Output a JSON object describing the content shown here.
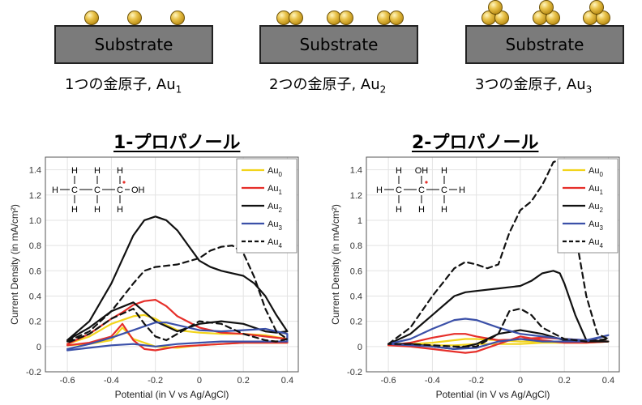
{
  "top": {
    "substrate_label": "Substrate",
    "captions": [
      {
        "text": "1つの金原子, Au",
        "sub": "1"
      },
      {
        "text": "2つの金原子, Au",
        "sub": "2"
      },
      {
        "text": "3つの金原子, Au",
        "sub": "3"
      }
    ],
    "gold_color": "#d9ad2a"
  },
  "molecules": {
    "left": {
      "H": "H",
      "C": "C",
      "OH": "OH"
    },
    "right": {
      "H": "H",
      "C": "C",
      "OH": "OH"
    }
  },
  "chart_data": [
    {
      "type": "line",
      "title": "1-プロパノール",
      "xlabel": "Potential (in V vs Ag/AgCl)",
      "ylabel": "Current Density (in mA/cm²)",
      "xlim": [
        -0.7,
        0.45
      ],
      "ylim": [
        -0.2,
        1.5
      ],
      "xticks": [
        "-0.6",
        "-0.4",
        "-0.2",
        "0",
        "0.2",
        "0.4"
      ],
      "yticks": [
        "-0.2",
        "0",
        "0.2",
        "0.4",
        "0.6",
        "0.8",
        "1.0",
        "1.2",
        "1.4"
      ],
      "grid": true,
      "legend_position": "top-right",
      "series": [
        {
          "name": "Au",
          "sub": "0",
          "color": "#f2d41c",
          "dash": false,
          "x": [
            -0.6,
            -0.5,
            -0.4,
            -0.3,
            -0.25,
            -0.2,
            -0.15,
            -0.1,
            0,
            0.1,
            0.2,
            0.3,
            0.4,
            0.4,
            0.3,
            0.2,
            0.1,
            0,
            -0.1,
            -0.2,
            -0.3,
            -0.35,
            -0.4,
            -0.5,
            -0.6
          ],
          "y": [
            0.02,
            0.08,
            0.18,
            0.24,
            0.25,
            0.22,
            0.17,
            0.13,
            0.11,
            0.1,
            0.1,
            0.09,
            0.06,
            0.03,
            0.03,
            0.03,
            0.02,
            0.01,
            -0.01,
            0.0,
            0.06,
            0.15,
            0.05,
            0.02,
            0.01
          ]
        },
        {
          "name": "Au",
          "sub": "1",
          "color": "#e62f2a",
          "dash": false,
          "x": [
            -0.6,
            -0.5,
            -0.4,
            -0.35,
            -0.3,
            -0.25,
            -0.2,
            -0.15,
            -0.1,
            0,
            0.1,
            0.2,
            0.3,
            0.4,
            0.4,
            0.3,
            0.2,
            0.1,
            0,
            -0.1,
            -0.2,
            -0.25,
            -0.3,
            -0.35,
            -0.4,
            -0.5,
            -0.6
          ],
          "y": [
            0.02,
            0.1,
            0.22,
            0.27,
            0.33,
            0.36,
            0.37,
            0.32,
            0.24,
            0.15,
            0.11,
            0.1,
            0.08,
            0.06,
            0.03,
            0.03,
            0.03,
            0.02,
            0.01,
            0.0,
            -0.03,
            -0.02,
            0.05,
            0.18,
            0.08,
            0.03,
            0.01
          ]
        },
        {
          "name": "Au",
          "sub": "2",
          "color": "#111111",
          "dash": false,
          "x": [
            -0.6,
            -0.5,
            -0.4,
            -0.3,
            -0.25,
            -0.2,
            -0.15,
            -0.1,
            -0.05,
            0,
            0.05,
            0.1,
            0.15,
            0.2,
            0.25,
            0.3,
            0.35,
            0.4,
            0.35,
            0.3,
            0.25,
            0.2,
            0.1,
            0,
            -0.1,
            -0.2,
            -0.3,
            -0.4,
            -0.5,
            -0.6
          ],
          "y": [
            0.05,
            0.2,
            0.5,
            0.88,
            1.0,
            1.03,
            1.0,
            0.92,
            0.8,
            0.68,
            0.63,
            0.6,
            0.58,
            0.56,
            0.5,
            0.4,
            0.25,
            0.12,
            0.11,
            0.12,
            0.15,
            0.18,
            0.2,
            0.18,
            0.12,
            0.2,
            0.35,
            0.28,
            0.15,
            0.05
          ]
        },
        {
          "name": "Au",
          "sub": "3",
          "color": "#3b50a8",
          "dash": false,
          "x": [
            -0.6,
            -0.5,
            -0.4,
            -0.3,
            -0.2,
            -0.15,
            -0.1,
            0,
            0.1,
            0.2,
            0.3,
            0.4,
            0.4,
            0.3,
            0.2,
            0.1,
            0,
            -0.1,
            -0.2,
            -0.3,
            -0.4,
            -0.5,
            -0.6
          ],
          "y": [
            -0.02,
            0.02,
            0.07,
            0.13,
            0.19,
            0.19,
            0.17,
            0.13,
            0.12,
            0.13,
            0.14,
            0.1,
            0.04,
            0.04,
            0.04,
            0.04,
            0.03,
            0.02,
            0.0,
            0.02,
            0.01,
            -0.01,
            -0.03
          ]
        },
        {
          "name": "Au",
          "sub": "4",
          "color": "#111111",
          "dash": true,
          "x": [
            -0.6,
            -0.5,
            -0.4,
            -0.3,
            -0.25,
            -0.2,
            -0.1,
            0,
            0.05,
            0.1,
            0.15,
            0.2,
            0.25,
            0.3,
            0.35,
            0.4,
            0.35,
            0.3,
            0.2,
            0.1,
            0,
            -0.1,
            -0.15,
            -0.2,
            -0.25,
            -0.3,
            -0.4,
            -0.5,
            -0.6
          ],
          "y": [
            0.04,
            0.12,
            0.28,
            0.5,
            0.6,
            0.63,
            0.65,
            0.7,
            0.76,
            0.79,
            0.8,
            0.74,
            0.55,
            0.3,
            0.12,
            0.06,
            0.04,
            0.05,
            0.1,
            0.18,
            0.2,
            0.1,
            0.05,
            0.08,
            0.18,
            0.3,
            0.22,
            0.1,
            0.03
          ]
        }
      ]
    },
    {
      "type": "line",
      "title": "2-プロパノール",
      "xlabel": "Potential (in V vs Ag/AgCl)",
      "ylabel": "Current Density (in mA/cm²)",
      "xlim": [
        -0.7,
        0.45
      ],
      "ylim": [
        -0.2,
        1.5
      ],
      "xticks": [
        "-0.6",
        "-0.4",
        "-0.2",
        "0",
        "0.2",
        "0.4"
      ],
      "yticks": [
        "-0.2",
        "0",
        "0.2",
        "0.4",
        "0.6",
        "0.8",
        "1",
        "1.2",
        "1.4"
      ],
      "grid": true,
      "legend_position": "top-right",
      "series": [
        {
          "name": "Au",
          "sub": "0",
          "color": "#f2d41c",
          "dash": false,
          "x": [
            -0.6,
            -0.4,
            -0.3,
            -0.25,
            -0.2,
            -0.1,
            0,
            0.1,
            0.2,
            0.3,
            0.4,
            0.3,
            0.2,
            0.1,
            0,
            -0.1,
            -0.2,
            -0.3,
            -0.4,
            -0.6
          ],
          "y": [
            0.01,
            0.03,
            0.05,
            0.06,
            0.06,
            0.05,
            0.04,
            0.04,
            0.04,
            0.04,
            0.04,
            0.03,
            0.03,
            0.03,
            0.02,
            0.02,
            0.02,
            0.01,
            0.01,
            0.01
          ]
        },
        {
          "name": "Au",
          "sub": "1",
          "color": "#e62f2a",
          "dash": false,
          "x": [
            -0.6,
            -0.5,
            -0.4,
            -0.3,
            -0.25,
            -0.2,
            -0.1,
            0,
            0.1,
            0.2,
            0.3,
            0.4,
            0.3,
            0.2,
            0.1,
            0,
            -0.1,
            -0.2,
            -0.25,
            -0.3,
            -0.4,
            -0.5,
            -0.6
          ],
          "y": [
            0.01,
            0.03,
            0.07,
            0.1,
            0.1,
            0.08,
            0.05,
            0.06,
            0.07,
            0.06,
            0.05,
            0.04,
            0.03,
            0.03,
            0.05,
            0.08,
            0.02,
            -0.04,
            -0.05,
            -0.04,
            -0.02,
            0.0,
            0.01
          ]
        },
        {
          "name": "Au",
          "sub": "2",
          "color": "#111111",
          "dash": false,
          "x": [
            -0.6,
            -0.5,
            -0.4,
            -0.3,
            -0.25,
            -0.2,
            -0.1,
            0,
            0.05,
            0.1,
            0.15,
            0.18,
            0.2,
            0.25,
            0.3,
            0.4,
            0.3,
            0.2,
            0.1,
            0,
            -0.1,
            -0.2,
            -0.3,
            -0.4,
            -0.5,
            -0.6
          ],
          "y": [
            0.02,
            0.1,
            0.25,
            0.4,
            0.43,
            0.44,
            0.46,
            0.48,
            0.52,
            0.58,
            0.6,
            0.58,
            0.5,
            0.25,
            0.05,
            0.04,
            0.04,
            0.05,
            0.1,
            0.13,
            0.1,
            0.02,
            -0.02,
            0.0,
            0.02,
            0.02
          ]
        },
        {
          "name": "Au",
          "sub": "3",
          "color": "#3b50a8",
          "dash": false,
          "x": [
            -0.6,
            -0.5,
            -0.4,
            -0.3,
            -0.25,
            -0.2,
            -0.1,
            0,
            0.1,
            0.2,
            0.3,
            0.4,
            0.3,
            0.2,
            0.1,
            0,
            -0.1,
            -0.2,
            -0.3,
            -0.4,
            -0.5,
            -0.6
          ],
          "y": [
            0.02,
            0.06,
            0.14,
            0.21,
            0.22,
            0.21,
            0.15,
            0.1,
            0.08,
            0.06,
            0.05,
            0.09,
            0.04,
            0.04,
            0.04,
            0.06,
            0.04,
            -0.01,
            -0.02,
            0.0,
            0.01,
            0.02
          ]
        },
        {
          "name": "Au",
          "sub": "4",
          "color": "#111111",
          "dash": true,
          "x": [
            -0.6,
            -0.5,
            -0.4,
            -0.3,
            -0.25,
            -0.2,
            -0.15,
            -0.1,
            -0.05,
            0,
            0.05,
            0.1,
            0.12,
            0.15,
            0.18,
            0.2,
            0.25,
            0.3,
            0.35,
            0.4,
            0.3,
            0.2,
            0.1,
            0.05,
            0,
            -0.05,
            -0.1,
            -0.2,
            -0.3,
            -0.4,
            -0.5,
            -0.6
          ],
          "y": [
            0.02,
            0.15,
            0.4,
            0.62,
            0.67,
            0.65,
            0.62,
            0.65,
            0.9,
            1.08,
            1.15,
            1.28,
            1.35,
            1.46,
            1.48,
            1.4,
            0.9,
            0.4,
            0.1,
            0.06,
            0.04,
            0.06,
            0.15,
            0.25,
            0.3,
            0.28,
            0.1,
            0.0,
            0.0,
            0.01,
            0.02,
            0.02
          ]
        }
      ]
    }
  ]
}
